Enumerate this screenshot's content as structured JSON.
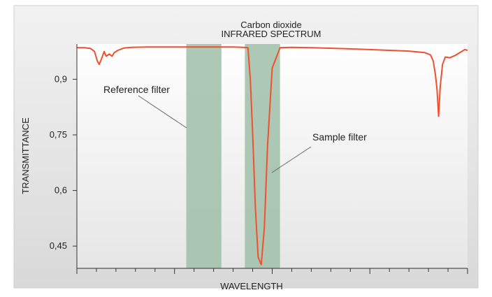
{
  "chart_data": {
    "type": "line",
    "title": "INFRARED SPECTRUM",
    "subtitle": "Carbon dioxide",
    "xlabel": "WAVELENGTH",
    "ylabel": "TRANSMITTANCE",
    "ylim": [
      0.39,
      0.995
    ],
    "xlim": [
      0,
      100
    ],
    "yticks": [
      {
        "value": 0.9,
        "label": "0,9"
      },
      {
        "value": 0.75,
        "label": "0,75"
      },
      {
        "value": 0.6,
        "label": "0,6"
      },
      {
        "value": 0.45,
        "label": "0,45"
      }
    ],
    "grid": false,
    "colors": {
      "line": "#f0502c",
      "filter_band": "#9fbfa8",
      "plot_bg_top": "#ffffff",
      "plot_bg_bottom": "#e8e8e8"
    },
    "series": [
      {
        "values_x": [
          0,
          2,
          3.5,
          4.5,
          5.2,
          5.7,
          6.3,
          7,
          7.5,
          8.3,
          9,
          9.6,
          10.5,
          12,
          14,
          18,
          25,
          30,
          35,
          40,
          42.5,
          43.8,
          44.4,
          45,
          45.7,
          46.4,
          47.2,
          48,
          48.8,
          50,
          52,
          55,
          60,
          70,
          80,
          85,
          89,
          90.5,
          91.2,
          91.8,
          92.2,
          92.6,
          93,
          93.6,
          94.3,
          95.5,
          97,
          98.5,
          99.3,
          100
        ],
        "values_y": [
          0.985,
          0.985,
          0.983,
          0.975,
          0.95,
          0.94,
          0.955,
          0.975,
          0.962,
          0.968,
          0.962,
          0.972,
          0.978,
          0.984,
          0.986,
          0.987,
          0.987,
          0.987,
          0.987,
          0.987,
          0.986,
          0.985,
          0.9,
          0.75,
          0.55,
          0.42,
          0.4,
          0.5,
          0.72,
          0.93,
          0.985,
          0.986,
          0.985,
          0.982,
          0.978,
          0.976,
          0.972,
          0.966,
          0.95,
          0.91,
          0.87,
          0.8,
          0.88,
          0.94,
          0.96,
          0.958,
          0.965,
          0.975,
          0.98,
          0.978
        ]
      }
    ],
    "bands": [
      {
        "x_start": 28,
        "x_end": 37,
        "label": "Reference filter"
      },
      {
        "x_start": 43,
        "x_end": 52,
        "label": "Sample filter"
      }
    ],
    "annotations": [
      {
        "text": "Reference filter",
        "target_band": 0
      },
      {
        "text": "Sample filter",
        "target_band": 1
      }
    ]
  }
}
